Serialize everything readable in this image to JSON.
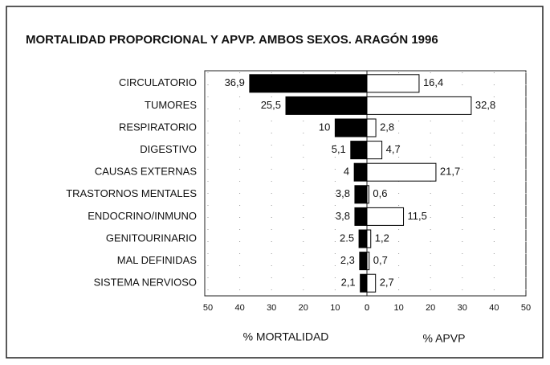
{
  "chart_data": {
    "type": "butterfly",
    "title": "MORTALIDAD PROPORCIONAL Y APVP. AMBOS SEXOS. ARAGÓN 1996",
    "categories": [
      "CIRCULATORIO",
      "TUMORES",
      "RESPIRATORIO",
      "DIGESTIVO",
      "CAUSAS EXTERNAS",
      "TRASTORNOS MENTALES",
      "ENDOCRINO/INMUNO",
      "GENITOURINARIO",
      "MAL DEFINIDAS",
      "SISTEMA NERVIOSO"
    ],
    "series": [
      {
        "name": "% MORTALIDAD",
        "color": "#000000",
        "values": [
          36.9,
          25.5,
          10,
          5.1,
          4,
          3.8,
          3.8,
          2.5,
          2.3,
          2.1
        ],
        "value_labels": [
          "36,9",
          "25,5",
          "10",
          "5,1",
          "4",
          "3,8",
          "3,8",
          "2.5",
          "2,3",
          "2,1"
        ]
      },
      {
        "name": "% APVP",
        "color": "#ffffff",
        "values": [
          16.4,
          32.8,
          2.8,
          4.7,
          21.7,
          0.6,
          11.5,
          1.2,
          0.7,
          2.7
        ],
        "value_labels": [
          "16,4",
          "32,8",
          "2,8",
          "4,7",
          "21,7",
          "0,6",
          "11,5",
          "1,2",
          "0,7",
          "2,7"
        ]
      }
    ],
    "xlim": [
      0,
      50
    ],
    "xticks": [
      0,
      10,
      20,
      30,
      40,
      50
    ],
    "grid": true
  }
}
